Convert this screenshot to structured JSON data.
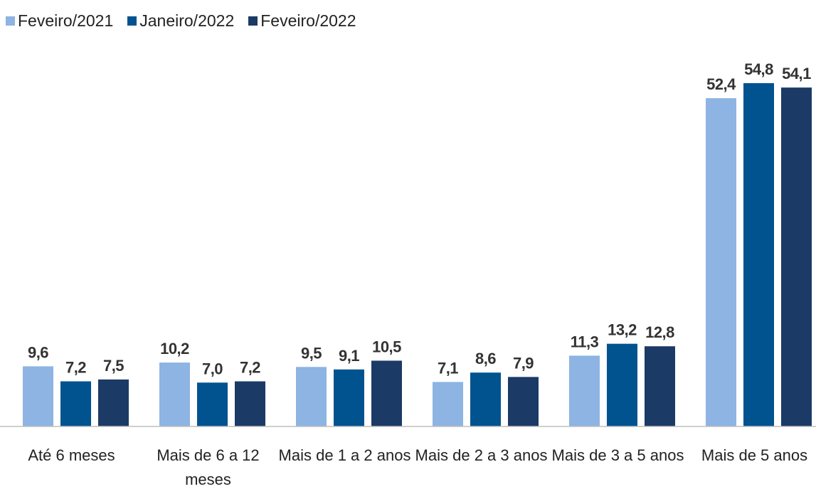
{
  "chart_data": {
    "type": "bar",
    "categories": [
      "Até 6 meses",
      "Mais de 6 a 12 meses",
      "Mais de 1 a 2 anos",
      "Mais de 2 a 3 anos",
      "Mais de 3 a 5 anos",
      "Mais de 5 anos"
    ],
    "series": [
      {
        "name": "Feveiro/2021",
        "color": "#8db4e2",
        "values": [
          9.6,
          10.2,
          9.5,
          7.1,
          11.3,
          52.4
        ],
        "value_labels": [
          "9,6",
          "10,2",
          "9,5",
          "7,1",
          "11,3",
          "52,4"
        ]
      },
      {
        "name": "Janeiro/2022",
        "color": "#00538f",
        "values": [
          7.2,
          7.0,
          9.1,
          8.6,
          13.2,
          54.8
        ],
        "value_labels": [
          "7,2",
          "7,0",
          "9,1",
          "8,6",
          "13,2",
          "54,8"
        ]
      },
      {
        "name": "Feveiro/2022",
        "color": "#1b3a66",
        "values": [
          7.5,
          7.2,
          10.5,
          7.9,
          12.8,
          54.1
        ],
        "value_labels": [
          "7,5",
          "7,2",
          "10,5",
          "7,9",
          "12,8",
          "54,1"
        ]
      }
    ],
    "legend": "top-left"
  }
}
